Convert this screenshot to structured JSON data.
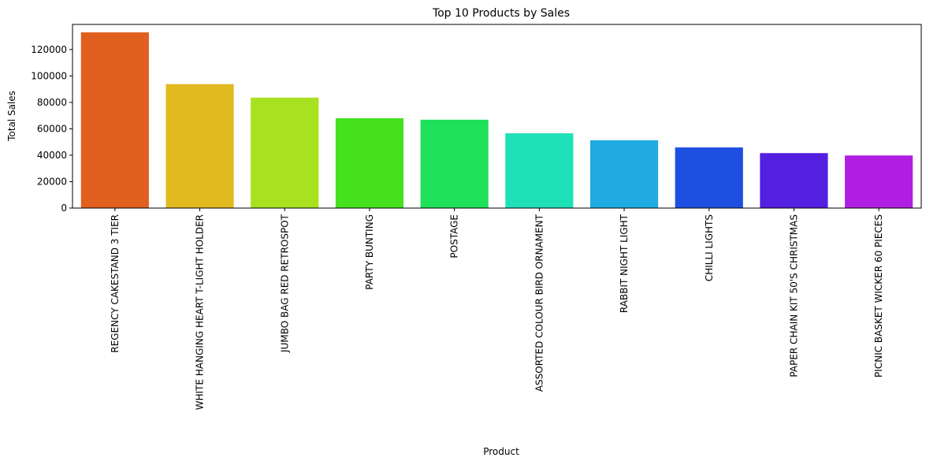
{
  "chart_data": {
    "type": "bar",
    "title": "Top 10 Products by Sales",
    "xlabel": "Product",
    "ylabel": "Total Sales",
    "categories": [
      "REGENCY CAKESTAND 3 TIER",
      "WHITE HANGING HEART T-LIGHT HOLDER",
      "JUMBO BAG RED RETROSPOT",
      "PARTY BUNTING",
      "POSTAGE",
      "ASSORTED COLOUR BIRD ORNAMENT",
      "RABBIT NIGHT LIGHT",
      "CHILLI LIGHTS",
      "PAPER CHAIN KIT 50'S CHRISTMAS",
      "PICNIC BASKET WICKER 60 PIECES"
    ],
    "values": [
      133000,
      93800,
      83600,
      68000,
      66900,
      56600,
      51300,
      45900,
      41600,
      39800
    ],
    "colors": [
      "#e15f1f",
      "#e1ba1f",
      "#a8e11f",
      "#45e11f",
      "#1fe15a",
      "#1fe1b7",
      "#1fabe1",
      "#1f4fe1",
      "#531fe1",
      "#b01fe1"
    ],
    "yticks": [
      0,
      20000,
      40000,
      60000,
      80000,
      100000,
      120000
    ],
    "ylim": [
      0,
      139000
    ],
    "grid": false,
    "legend": "none"
  }
}
